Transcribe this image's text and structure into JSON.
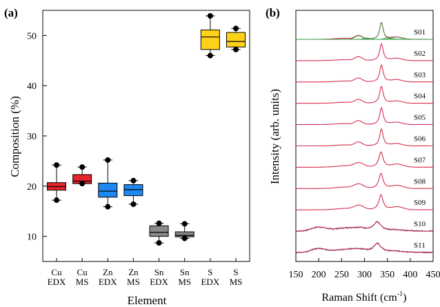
{
  "panel_a": {
    "label": "(a)",
    "ylabel": "Composition (%)",
    "xlabel": "Element"
  },
  "panel_b": {
    "label": "(b)",
    "ylabel": "Intensity (arb. units)",
    "xlabel_main": "Raman Shift (cm",
    "xlabel_sup": "-1",
    "xlabel_close": ")"
  },
  "colors": {
    "Cu": "#e8242b",
    "Zn": "#1e88f0",
    "Sn": "#8a8a8a",
    "S": "#ffd21a",
    "spectrum": "#d62c4f",
    "spectrum_noisy": "#3a1f3a",
    "fit": "#2a9a3a"
  },
  "chart_data": [
    {
      "type": "box",
      "ylim": [
        5,
        55
      ],
      "yticks": [
        10,
        20,
        30,
        40,
        50
      ],
      "categories": [
        {
          "line1": "Cu",
          "line2": "EDX",
          "color_key": "Cu",
          "whisker_low": 17.2,
          "q1": 19.2,
          "median": 19.9,
          "q3": 20.7,
          "whisker_high": 24.2
        },
        {
          "line1": "Cu",
          "line2": "MS",
          "color_key": "Cu",
          "whisker_low": 20.5,
          "q1": 20.5,
          "median": 21.0,
          "q3": 22.3,
          "whisker_high": 23.8
        },
        {
          "line1": "Zn",
          "line2": "EDX",
          "color_key": "Zn",
          "whisker_low": 15.9,
          "q1": 17.8,
          "median": 19.0,
          "q3": 20.6,
          "whisker_high": 25.2
        },
        {
          "line1": "Zn",
          "line2": "MS",
          "color_key": "Zn",
          "whisker_low": 16.4,
          "q1": 18.1,
          "median": 19.3,
          "q3": 20.3,
          "whisker_high": 21.1
        },
        {
          "line1": "Sn",
          "line2": "EDX",
          "color_key": "Sn",
          "whisker_low": 8.7,
          "q1": 10.0,
          "median": 10.8,
          "q3": 12.1,
          "whisker_high": 12.6
        },
        {
          "line1": "Sn",
          "line2": "MS",
          "color_key": "Sn",
          "whisker_low": 9.6,
          "q1": 9.9,
          "median": 10.2,
          "q3": 10.9,
          "whisker_high": 12.5
        },
        {
          "line1": "S",
          "line2": "EDX",
          "color_key": "S",
          "whisker_low": 46.0,
          "q1": 47.2,
          "median": 49.7,
          "q3": 51.1,
          "whisker_high": 53.9
        },
        {
          "line1": "S",
          "line2": "MS",
          "color_key": "S",
          "whisker_low": 47.2,
          "q1": 47.7,
          "median": 48.8,
          "q3": 50.6,
          "whisker_high": 51.4
        }
      ]
    },
    {
      "type": "line",
      "xlim": [
        150,
        450
      ],
      "xticks": [
        150,
        200,
        250,
        300,
        350,
        400,
        450
      ],
      "series_offset_step": 1.0,
      "series": [
        {
          "name": "S01",
          "style": "sharp",
          "peak": 337,
          "fit": true
        },
        {
          "name": "S02",
          "style": "sharp",
          "peak": 337
        },
        {
          "name": "S03",
          "style": "sharp",
          "peak": 337
        },
        {
          "name": "S04",
          "style": "sharp",
          "peak": 337
        },
        {
          "name": "S05",
          "style": "sharp",
          "peak": 337
        },
        {
          "name": "S06",
          "style": "sharp",
          "peak": 337
        },
        {
          "name": "S07",
          "style": "medium",
          "peak": 336
        },
        {
          "name": "S08",
          "style": "medium",
          "peak": 336
        },
        {
          "name": "S09",
          "style": "medium",
          "peak": 336
        },
        {
          "name": "S10",
          "style": "broad",
          "peak": 328
        },
        {
          "name": "S11",
          "style": "broad",
          "peak": 328
        }
      ]
    }
  ]
}
